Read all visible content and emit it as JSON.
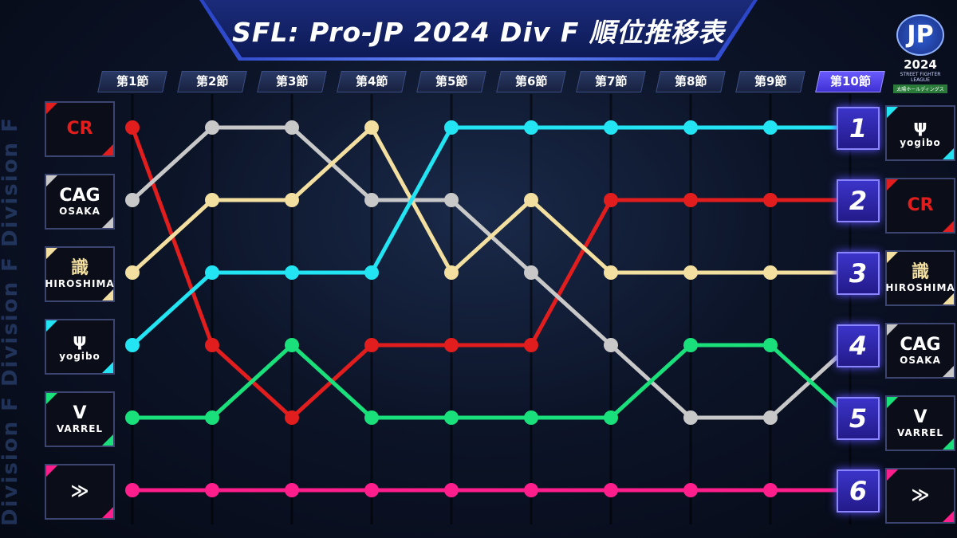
{
  "title": "SFL: Pro-JP 2024 Div F 順位推移表",
  "side_text": "Division F  Division F  Division F",
  "badge": {
    "jp": "JP",
    "year": "2024",
    "sub": "STREET FIGHTER LEAGUE",
    "sponsor": "太陽ホールディングス"
  },
  "colors": {
    "CR": "#e11d1d",
    "CAG": "#c8c8c8",
    "HIROSHIMA": "#f3dfa0",
    "yogibo": "#22e4f2",
    "VARREL": "#19e07a",
    "pink_team": "#ff1e8c"
  },
  "left_teams": [
    {
      "mark": "CR",
      "name": "",
      "color": "#e11d1d",
      "accent": "#e11d1d"
    },
    {
      "mark": "CAG",
      "name": "OSAKA",
      "color": "#ffffff",
      "accent": "#c8c8c8"
    },
    {
      "mark": "識",
      "name": "HIROSHIMA",
      "color": "#f3dfa0",
      "accent": "#f3dfa0"
    },
    {
      "mark": "ψ",
      "name": "yogibo",
      "color": "#ffffff",
      "accent": "#22e4f2"
    },
    {
      "mark": "V",
      "name": "VARREL",
      "color": "#ffffff",
      "accent": "#19e07a"
    },
    {
      "mark": "≫",
      "name": "",
      "color": "#ffffff",
      "accent": "#ff1e8c"
    }
  ],
  "right_teams": [
    {
      "rank": "1",
      "mark": "ψ",
      "name": "yogibo",
      "color": "#ffffff",
      "accent": "#22e4f2"
    },
    {
      "rank": "2",
      "mark": "CR",
      "name": "",
      "color": "#e11d1d",
      "accent": "#e11d1d"
    },
    {
      "rank": "3",
      "mark": "識",
      "name": "HIROSHIMA",
      "color": "#f3dfa0",
      "accent": "#f3dfa0"
    },
    {
      "rank": "4",
      "mark": "CAG",
      "name": "OSAKA",
      "color": "#ffffff",
      "accent": "#c8c8c8"
    },
    {
      "rank": "5",
      "mark": "V",
      "name": "VARREL",
      "color": "#ffffff",
      "accent": "#19e07a"
    },
    {
      "rank": "6",
      "mark": "≫",
      "name": "",
      "color": "#ffffff",
      "accent": "#ff1e8c"
    }
  ],
  "chart_data": {
    "type": "line",
    "title": "SFL: Pro-JP 2024 Div F 順位推移表",
    "categories": [
      "第1節",
      "第2節",
      "第3節",
      "第4節",
      "第5節",
      "第6節",
      "第7節",
      "第8節",
      "第9節",
      "第10節"
    ],
    "y_scale": "rank, 1 at top",
    "ylim": [
      1,
      6
    ],
    "active_category": "第10節",
    "series": [
      {
        "key": "CR",
        "color": "#e11d1d",
        "values": [
          1,
          4,
          5,
          4,
          4,
          4,
          2,
          2,
          2,
          2
        ]
      },
      {
        "key": "CAG",
        "color": "#c8c8c8",
        "values": [
          2,
          1,
          1,
          2,
          2,
          3,
          4,
          5,
          5,
          4
        ]
      },
      {
        "key": "HIROSHIMA",
        "color": "#f3dfa0",
        "values": [
          3,
          2,
          2,
          1,
          3,
          2,
          3,
          3,
          3,
          3
        ]
      },
      {
        "key": "yogibo",
        "color": "#22e4f2",
        "values": [
          4,
          3,
          3,
          3,
          1,
          1,
          1,
          1,
          1,
          1
        ]
      },
      {
        "key": "VARREL",
        "color": "#19e07a",
        "values": [
          5,
          5,
          4,
          5,
          5,
          5,
          5,
          4,
          4,
          5
        ]
      },
      {
        "key": "pink_team",
        "color": "#ff1e8c",
        "values": [
          6,
          6,
          6,
          6,
          6,
          6,
          6,
          6,
          6,
          6
        ]
      }
    ]
  }
}
